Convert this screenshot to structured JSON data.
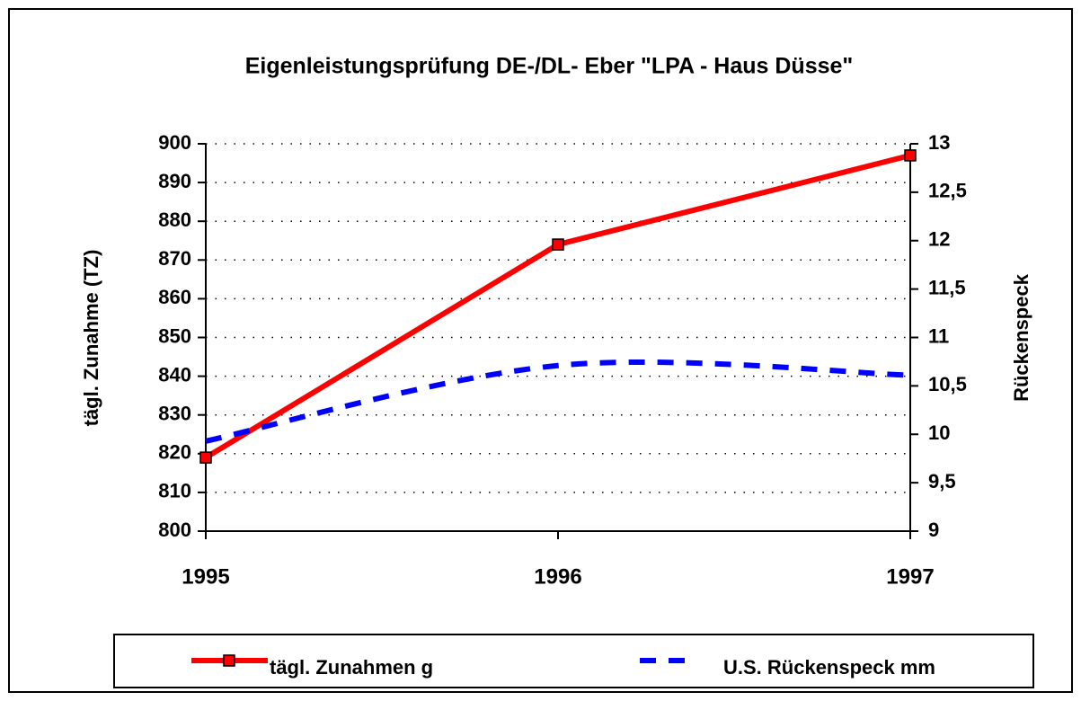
{
  "chart_data": {
    "type": "line",
    "title": "Eigenleistungsprüfung DE-/DL- Eber \"LPA - Haus Düsse\"",
    "y_label": "tägl. Zunahme (TZ)",
    "y2_label": "Rückenspeck",
    "categories": [
      "1995",
      "1996",
      "1997"
    ],
    "series": [
      {
        "name": "tägl. Zunahmen g",
        "color": "#ff0000",
        "values": [
          819,
          874,
          897
        ],
        "markers": true,
        "dashed": false
      },
      {
        "name": "U.S. Rückenspeck mm",
        "color": "#0000ff",
        "values": [
          9.93,
          10.71,
          10.61
        ],
        "axis": "y2",
        "markers": false,
        "dashed": true,
        "smooth": true
      }
    ],
    "ylim": [
      800,
      900
    ],
    "yticks": [
      800,
      810,
      820,
      830,
      840,
      850,
      860,
      870,
      880,
      890,
      900
    ],
    "y2lim": [
      9,
      13
    ],
    "y2ticks": [
      9,
      {
        "value": 9.5,
        "label": "9,5"
      },
      10,
      {
        "value": 10.5,
        "label": "10,5"
      },
      11,
      {
        "value": 11.5,
        "label": "11,5"
      },
      12,
      {
        "value": 12.5,
        "label": "12,5"
      },
      13
    ],
    "grid": true,
    "legend": "bottom"
  }
}
